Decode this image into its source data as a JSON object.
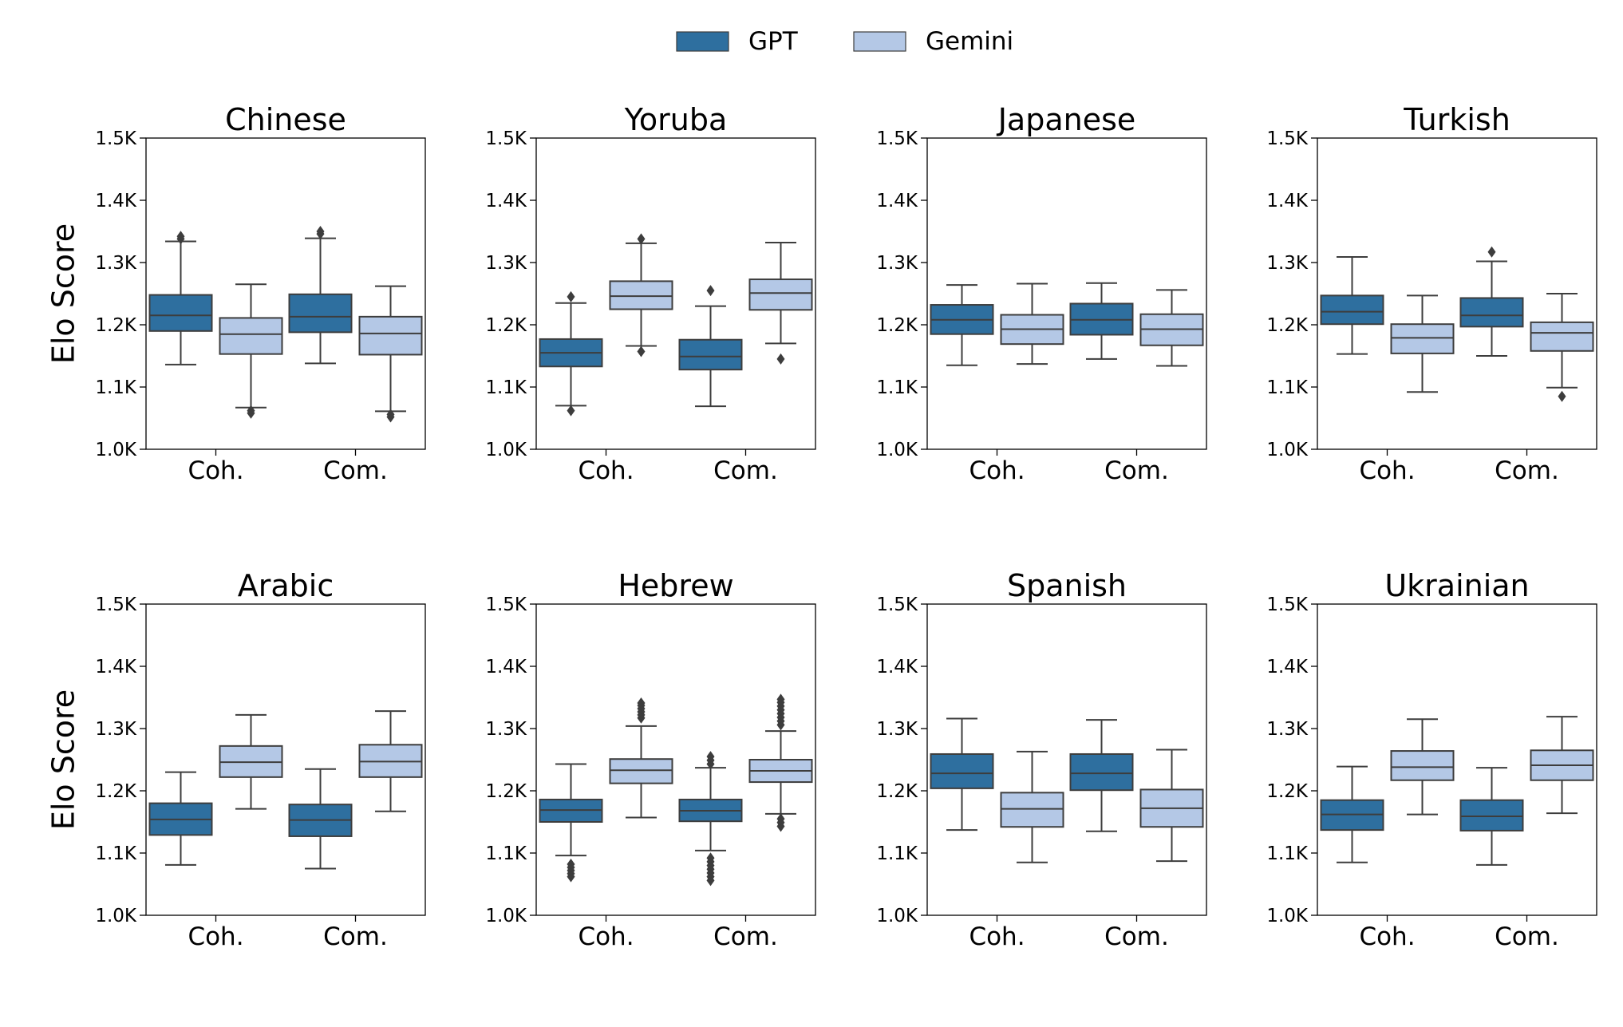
{
  "chart_data": {
    "type": "boxplot",
    "y_label": "Elo Score",
    "y_range": [
      1000,
      1500
    ],
    "y_ticks": [
      1000,
      1100,
      1200,
      1300,
      1400,
      1500
    ],
    "y_tick_labels": [
      "1.0K",
      "1.1K",
      "1.2K",
      "1.3K",
      "1.4K",
      "1.5K"
    ],
    "categories": [
      "Coh.",
      "Com."
    ],
    "legend": [
      {
        "name": "GPT",
        "color": "#2e6f9f"
      },
      {
        "name": "Gemini",
        "color": "#b4c8e6"
      }
    ],
    "panels": [
      {
        "title": "Chinese",
        "boxes": [
          {
            "series": "GPT",
            "category": "Coh.",
            "whisker_low": 1136,
            "q1": 1190,
            "median": 1215,
            "q3": 1248,
            "whisker_high": 1334,
            "outliers": [
              1338,
              1342
            ]
          },
          {
            "series": "Gemini",
            "category": "Coh.",
            "whisker_low": 1067,
            "q1": 1153,
            "median": 1185,
            "q3": 1211,
            "whisker_high": 1265,
            "outliers": [
              1058,
              1062
            ]
          },
          {
            "series": "GPT",
            "category": "Com.",
            "whisker_low": 1138,
            "q1": 1188,
            "median": 1213,
            "q3": 1249,
            "whisker_high": 1339,
            "outliers": [
              1346,
              1350
            ]
          },
          {
            "series": "Gemini",
            "category": "Com.",
            "whisker_low": 1061,
            "q1": 1152,
            "median": 1186,
            "q3": 1213,
            "whisker_high": 1262,
            "outliers": [
              1052,
              1056
            ]
          }
        ]
      },
      {
        "title": "Yoruba",
        "boxes": [
          {
            "series": "GPT",
            "category": "Coh.",
            "whisker_low": 1070,
            "q1": 1133,
            "median": 1155,
            "q3": 1177,
            "whisker_high": 1235,
            "outliers": [
              1062,
              1245
            ]
          },
          {
            "series": "Gemini",
            "category": "Coh.",
            "whisker_low": 1166,
            "q1": 1225,
            "median": 1246,
            "q3": 1270,
            "whisker_high": 1331,
            "outliers": [
              1157,
              1338
            ]
          },
          {
            "series": "GPT",
            "category": "Com.",
            "whisker_low": 1069,
            "q1": 1128,
            "median": 1149,
            "q3": 1176,
            "whisker_high": 1230,
            "outliers": [
              1255
            ]
          },
          {
            "series": "Gemini",
            "category": "Com.",
            "whisker_low": 1170,
            "q1": 1224,
            "median": 1251,
            "q3": 1273,
            "whisker_high": 1332,
            "outliers": [
              1145
            ]
          }
        ]
      },
      {
        "title": "Japanese",
        "boxes": [
          {
            "series": "GPT",
            "category": "Coh.",
            "whisker_low": 1135,
            "q1": 1185,
            "median": 1208,
            "q3": 1232,
            "whisker_high": 1264,
            "outliers": []
          },
          {
            "series": "Gemini",
            "category": "Coh.",
            "whisker_low": 1137,
            "q1": 1169,
            "median": 1193,
            "q3": 1216,
            "whisker_high": 1266,
            "outliers": []
          },
          {
            "series": "GPT",
            "category": "Com.",
            "whisker_low": 1145,
            "q1": 1184,
            "median": 1208,
            "q3": 1234,
            "whisker_high": 1267,
            "outliers": []
          },
          {
            "series": "Gemini",
            "category": "Com.",
            "whisker_low": 1134,
            "q1": 1167,
            "median": 1193,
            "q3": 1217,
            "whisker_high": 1256,
            "outliers": []
          }
        ]
      },
      {
        "title": "Turkish",
        "boxes": [
          {
            "series": "GPT",
            "category": "Coh.",
            "whisker_low": 1153,
            "q1": 1201,
            "median": 1221,
            "q3": 1247,
            "whisker_high": 1309,
            "outliers": []
          },
          {
            "series": "Gemini",
            "category": "Coh.",
            "whisker_low": 1092,
            "q1": 1154,
            "median": 1179,
            "q3": 1201,
            "whisker_high": 1247,
            "outliers": []
          },
          {
            "series": "GPT",
            "category": "Com.",
            "whisker_low": 1150,
            "q1": 1197,
            "median": 1215,
            "q3": 1243,
            "whisker_high": 1302,
            "outliers": [
              1317
            ]
          },
          {
            "series": "Gemini",
            "category": "Com.",
            "whisker_low": 1099,
            "q1": 1158,
            "median": 1187,
            "q3": 1204,
            "whisker_high": 1250,
            "outliers": [
              1085
            ]
          }
        ]
      },
      {
        "title": "Arabic",
        "boxes": [
          {
            "series": "GPT",
            "category": "Coh.",
            "whisker_low": 1081,
            "q1": 1129,
            "median": 1154,
            "q3": 1180,
            "whisker_high": 1230,
            "outliers": []
          },
          {
            "series": "Gemini",
            "category": "Coh.",
            "whisker_low": 1171,
            "q1": 1222,
            "median": 1246,
            "q3": 1272,
            "whisker_high": 1322,
            "outliers": []
          },
          {
            "series": "GPT",
            "category": "Com.",
            "whisker_low": 1075,
            "q1": 1127,
            "median": 1153,
            "q3": 1178,
            "whisker_high": 1235,
            "outliers": []
          },
          {
            "series": "Gemini",
            "category": "Com.",
            "whisker_low": 1167,
            "q1": 1222,
            "median": 1247,
            "q3": 1274,
            "whisker_high": 1328,
            "outliers": []
          }
        ]
      },
      {
        "title": "Hebrew",
        "boxes": [
          {
            "series": "GPT",
            "category": "Coh.",
            "whisker_low": 1096,
            "q1": 1150,
            "median": 1169,
            "q3": 1186,
            "whisker_high": 1243,
            "outliers": [
              1062,
              1067,
              1072,
              1077,
              1082
            ]
          },
          {
            "series": "Gemini",
            "category": "Coh.",
            "whisker_low": 1157,
            "q1": 1212,
            "median": 1233,
            "q3": 1251,
            "whisker_high": 1304,
            "outliers": [
              1317,
              1322,
              1327,
              1332,
              1337,
              1341
            ]
          },
          {
            "series": "GPT",
            "category": "Com.",
            "whisker_low": 1104,
            "q1": 1151,
            "median": 1168,
            "q3": 1186,
            "whisker_high": 1237,
            "outliers": [
              1056,
              1062,
              1068,
              1074,
              1080,
              1086,
              1092,
              1243,
              1249,
              1255
            ]
          },
          {
            "series": "Gemini",
            "category": "Com.",
            "whisker_low": 1163,
            "q1": 1214,
            "median": 1232,
            "q3": 1250,
            "whisker_high": 1296,
            "outliers": [
              1143,
              1149,
              1155,
              1306,
              1312,
              1318,
              1324,
              1330,
              1336,
              1342,
              1347
            ]
          }
        ]
      },
      {
        "title": "Spanish",
        "boxes": [
          {
            "series": "GPT",
            "category": "Coh.",
            "whisker_low": 1137,
            "q1": 1204,
            "median": 1228,
            "q3": 1259,
            "whisker_high": 1316,
            "outliers": []
          },
          {
            "series": "Gemini",
            "category": "Coh.",
            "whisker_low": 1085,
            "q1": 1142,
            "median": 1171,
            "q3": 1197,
            "whisker_high": 1263,
            "outliers": []
          },
          {
            "series": "GPT",
            "category": "Com.",
            "whisker_low": 1135,
            "q1": 1201,
            "median": 1228,
            "q3": 1259,
            "whisker_high": 1314,
            "outliers": []
          },
          {
            "series": "Gemini",
            "category": "Com.",
            "whisker_low": 1087,
            "q1": 1142,
            "median": 1172,
            "q3": 1202,
            "whisker_high": 1266,
            "outliers": []
          }
        ]
      },
      {
        "title": "Ukrainian",
        "boxes": [
          {
            "series": "GPT",
            "category": "Coh.",
            "whisker_low": 1085,
            "q1": 1137,
            "median": 1162,
            "q3": 1185,
            "whisker_high": 1239,
            "outliers": []
          },
          {
            "series": "Gemini",
            "category": "Coh.",
            "whisker_low": 1162,
            "q1": 1217,
            "median": 1238,
            "q3": 1264,
            "whisker_high": 1315,
            "outliers": []
          },
          {
            "series": "GPT",
            "category": "Com.",
            "whisker_low": 1081,
            "q1": 1136,
            "median": 1159,
            "q3": 1185,
            "whisker_high": 1237,
            "outliers": []
          },
          {
            "series": "Gemini",
            "category": "Com.",
            "whisker_low": 1164,
            "q1": 1217,
            "median": 1241,
            "q3": 1265,
            "whisker_high": 1319,
            "outliers": []
          }
        ]
      }
    ]
  }
}
